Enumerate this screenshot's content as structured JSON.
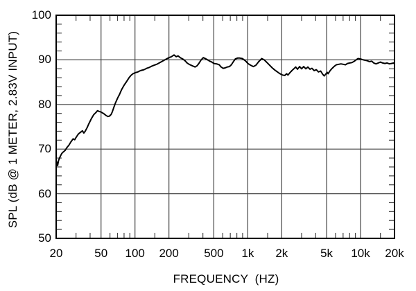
{
  "chart_data": {
    "type": "line",
    "title": "",
    "xlabel": "FREQUENCY  (HZ)",
    "ylabel": "SPL (dB @ 1 METER, 2.83V INPUT)",
    "x_scale": "log",
    "xlim": [
      20,
      20000
    ],
    "ylim": [
      50,
      100
    ],
    "grid": true,
    "legend": false,
    "grid_color": "#444444",
    "line_color": "#000000",
    "frame_color": "#000000",
    "x_major_gridlines": [
      50,
      100,
      200,
      500,
      1000,
      2000,
      5000,
      10000
    ],
    "y_major_gridlines": [
      60,
      70,
      80,
      90
    ],
    "x_minor_ticks": [
      30,
      40,
      60,
      70,
      80,
      90,
      150,
      300,
      400,
      600,
      700,
      800,
      900,
      1500,
      3000,
      4000,
      6000,
      7000,
      8000,
      9000,
      15000
    ],
    "y_minor_tick_step": 2,
    "x_ticks": [
      {
        "f": 20,
        "label": "20"
      },
      {
        "f": 50,
        "label": "50"
      },
      {
        "f": 100,
        "label": "100"
      },
      {
        "f": 200,
        "label": "200"
      },
      {
        "f": 500,
        "label": "500"
      },
      {
        "f": 1000,
        "label": "1k"
      },
      {
        "f": 2000,
        "label": "2k"
      },
      {
        "f": 5000,
        "label": "5k"
      },
      {
        "f": 10000,
        "label": "10k"
      },
      {
        "f": 20000,
        "label": "20k"
      }
    ],
    "y_ticks": [
      {
        "v": 50,
        "label": "50"
      },
      {
        "v": 60,
        "label": "60"
      },
      {
        "v": 70,
        "label": "70"
      },
      {
        "v": 80,
        "label": "80"
      },
      {
        "v": 90,
        "label": "90"
      },
      {
        "v": 100,
        "label": "100"
      }
    ],
    "series": [
      {
        "name": "SPL @ 1 meter, 2.83V input",
        "points": [
          [
            20,
            66.6
          ],
          [
            20.3,
            67.1
          ],
          [
            20.6,
            66.3
          ],
          [
            21,
            67.4
          ],
          [
            21.6,
            68.2
          ],
          [
            22.4,
            69.0
          ],
          [
            23.2,
            69.4
          ],
          [
            24,
            69.7
          ],
          [
            25,
            70.4
          ],
          [
            26,
            70.9
          ],
          [
            27,
            71.6
          ],
          [
            28.3,
            72.3
          ],
          [
            29.2,
            72.1
          ],
          [
            30,
            72.6
          ],
          [
            31.5,
            73.4
          ],
          [
            33,
            73.8
          ],
          [
            34.2,
            74.1
          ],
          [
            35.2,
            73.6
          ],
          [
            36.2,
            74.0
          ],
          [
            37.6,
            74.8
          ],
          [
            39,
            75.7
          ],
          [
            41,
            76.8
          ],
          [
            43,
            77.7
          ],
          [
            45,
            78.2
          ],
          [
            46.5,
            78.6
          ],
          [
            48.5,
            78.4
          ],
          [
            50,
            78.3
          ],
          [
            52.5,
            78.0
          ],
          [
            55,
            77.6
          ],
          [
            57.5,
            77.3
          ],
          [
            59.5,
            77.4
          ],
          [
            61.5,
            77.8
          ],
          [
            63,
            78.4
          ],
          [
            65,
            79.4
          ],
          [
            67,
            80.3
          ],
          [
            70,
            81.4
          ],
          [
            73,
            82.3
          ],
          [
            76,
            83.3
          ],
          [
            80,
            84.3
          ],
          [
            84,
            85.1
          ],
          [
            88,
            85.9
          ],
          [
            92,
            86.5
          ],
          [
            96,
            86.9
          ],
          [
            100,
            87.1
          ],
          [
            106,
            87.3
          ],
          [
            112,
            87.6
          ],
          [
            120,
            87.8
          ],
          [
            127,
            88.1
          ],
          [
            134,
            88.3
          ],
          [
            141,
            88.6
          ],
          [
            148,
            88.8
          ],
          [
            156,
            89.0
          ],
          [
            164,
            89.3
          ],
          [
            172,
            89.6
          ],
          [
            181,
            89.9
          ],
          [
            190,
            90.2
          ],
          [
            200,
            90.5
          ],
          [
            210,
            90.7
          ],
          [
            222,
            91.1
          ],
          [
            232,
            90.7
          ],
          [
            241,
            90.9
          ],
          [
            252,
            90.5
          ],
          [
            265,
            90.2
          ],
          [
            278,
            89.8
          ],
          [
            290,
            89.3
          ],
          [
            302,
            89.0
          ],
          [
            314,
            88.8
          ],
          [
            327,
            88.6
          ],
          [
            341,
            88.4
          ],
          [
            356,
            88.7
          ],
          [
            371,
            89.3
          ],
          [
            386,
            90.0
          ],
          [
            403,
            90.5
          ],
          [
            420,
            90.3
          ],
          [
            440,
            90.0
          ],
          [
            460,
            89.7
          ],
          [
            480,
            89.5
          ],
          [
            500,
            89.2
          ],
          [
            530,
            89.1
          ],
          [
            558,
            88.9
          ],
          [
            580,
            88.4
          ],
          [
            605,
            88.1
          ],
          [
            630,
            88.2
          ],
          [
            658,
            88.4
          ],
          [
            688,
            88.5
          ],
          [
            715,
            88.9
          ],
          [
            745,
            89.6
          ],
          [
            775,
            90.2
          ],
          [
            810,
            90.4
          ],
          [
            850,
            90.4
          ],
          [
            895,
            90.3
          ],
          [
            940,
            89.9
          ],
          [
            970,
            89.6
          ],
          [
            1000,
            89.2
          ],
          [
            1060,
            88.8
          ],
          [
            1120,
            88.5
          ],
          [
            1180,
            88.8
          ],
          [
            1250,
            89.6
          ],
          [
            1330,
            90.3
          ],
          [
            1400,
            90.0
          ],
          [
            1480,
            89.4
          ],
          [
            1560,
            88.8
          ],
          [
            1650,
            88.2
          ],
          [
            1740,
            87.7
          ],
          [
            1830,
            87.3
          ],
          [
            1930,
            86.9
          ],
          [
            2030,
            86.6
          ],
          [
            2130,
            86.5
          ],
          [
            2210,
            86.9
          ],
          [
            2270,
            86.6
          ],
          [
            2360,
            87.1
          ],
          [
            2460,
            87.6
          ],
          [
            2560,
            88.0
          ],
          [
            2660,
            88.4
          ],
          [
            2760,
            87.9
          ],
          [
            2880,
            88.5
          ],
          [
            3000,
            88.0
          ],
          [
            3130,
            88.5
          ],
          [
            3270,
            88.0
          ],
          [
            3410,
            88.4
          ],
          [
            3560,
            87.9
          ],
          [
            3710,
            88.1
          ],
          [
            3880,
            87.6
          ],
          [
            4050,
            87.8
          ],
          [
            4230,
            87.3
          ],
          [
            4430,
            87.5
          ],
          [
            4610,
            86.8
          ],
          [
            4760,
            86.4
          ],
          [
            4910,
            86.8
          ],
          [
            5060,
            87.2
          ],
          [
            5160,
            86.9
          ],
          [
            5310,
            87.4
          ],
          [
            5550,
            88.0
          ],
          [
            5810,
            88.5
          ],
          [
            6100,
            88.9
          ],
          [
            6400,
            89.0
          ],
          [
            6710,
            89.1
          ],
          [
            7030,
            89.0
          ],
          [
            7340,
            88.9
          ],
          [
            7660,
            89.2
          ],
          [
            8010,
            89.3
          ],
          [
            8400,
            89.4
          ],
          [
            8810,
            89.7
          ],
          [
            9230,
            90.1
          ],
          [
            9500,
            90.3
          ],
          [
            9980,
            90.2
          ],
          [
            10600,
            90.0
          ],
          [
            11000,
            89.9
          ],
          [
            11500,
            89.8
          ],
          [
            12000,
            89.6
          ],
          [
            12550,
            89.7
          ],
          [
            13100,
            89.3
          ],
          [
            13700,
            89.1
          ],
          [
            14350,
            89.3
          ],
          [
            15000,
            89.5
          ],
          [
            15700,
            89.3
          ],
          [
            16450,
            89.2
          ],
          [
            17200,
            89.3
          ],
          [
            18000,
            89.1
          ],
          [
            18800,
            89.2
          ],
          [
            19700,
            89.3
          ],
          [
            20000,
            89.1
          ]
        ]
      }
    ]
  }
}
